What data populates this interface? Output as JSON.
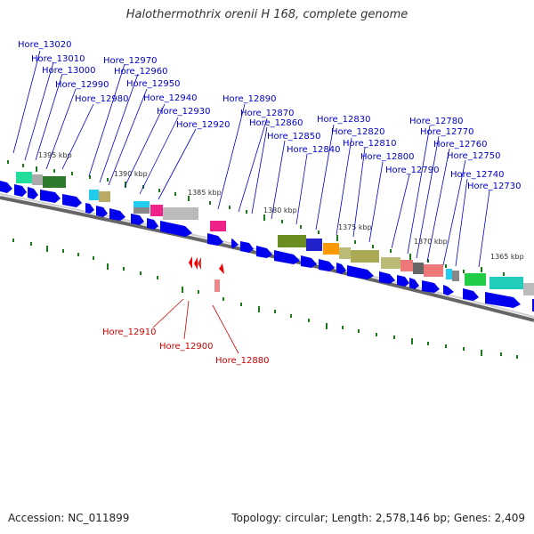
{
  "title": "Halothermothrix orenii H 168, complete genome",
  "footer": {
    "accession": "Accession: NC_011899",
    "summary": "Topology: circular; Length: 2,578,146 bp; Genes: 2,409"
  },
  "colors": {
    "forward_gene": "#0000ee",
    "label_top": "#0000cc",
    "label_bottom": "#cc0000",
    "tick": "#006600",
    "backbone": "#777777"
  },
  "scale_labels": [
    "1395 kbp",
    "1390 kbp",
    "1385 kbp",
    "1380 kbp",
    "1375 kbp",
    "1370 kbp",
    "1365 kbp"
  ],
  "top_labels": [
    "Hore_13020",
    "Hore_13010",
    "Hore_13000",
    "Hore_12990",
    "Hore_12980",
    "Hore_12970",
    "Hore_12960",
    "Hore_12950",
    "Hore_12940",
    "Hore_12930",
    "Hore_12920",
    "Hore_12890",
    "Hore_12870",
    "Hore_12860",
    "Hore_12850",
    "Hore_12840",
    "Hore_12830",
    "Hore_12820",
    "Hore_12810",
    "Hore_12800",
    "Hore_12790",
    "Hore_12780",
    "Hore_12770",
    "Hore_12760",
    "Hore_12750",
    "Hore_12740",
    "Hore_12730"
  ],
  "bottom_labels": [
    "Hore_12910",
    "Hore_12900",
    "Hore_12880"
  ]
}
